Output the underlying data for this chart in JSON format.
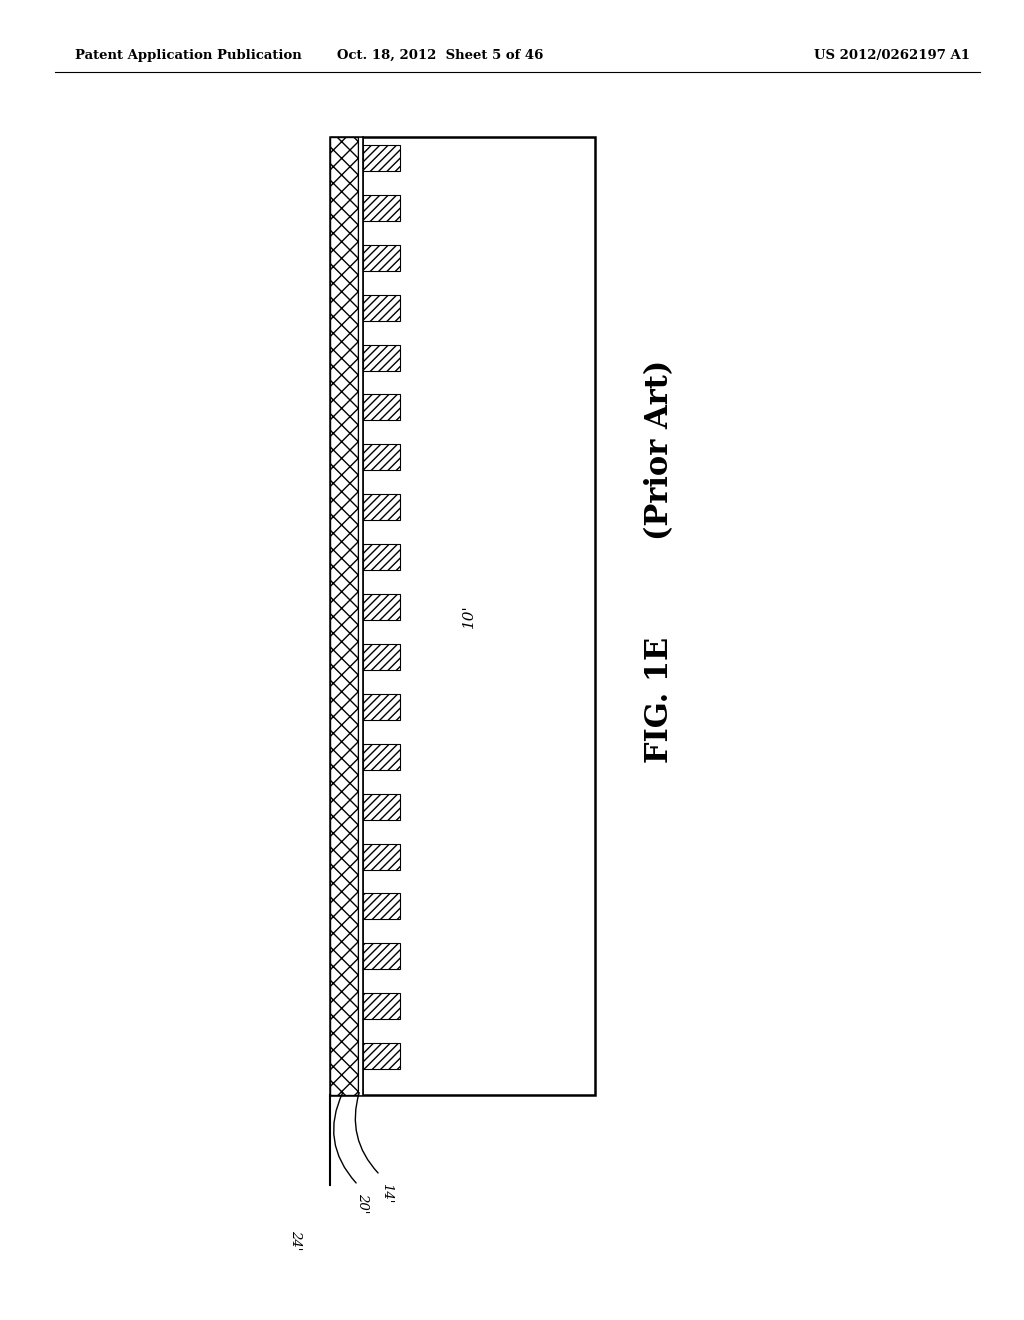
{
  "header_left": "Patent Application Publication",
  "header_mid": "Oct. 18, 2012  Sheet 5 of 46",
  "header_right": "US 2012/0262197 A1",
  "fig_label": "FIG. 1E",
  "fig_sublabel": "(Prior Art)",
  "label_10": "10'",
  "label_14": "14'",
  "label_20": "20'",
  "label_24": "24'",
  "bg_color": "#ffffff",
  "num_fins": 19,
  "fin_hatch": "////",
  "substrate_hatch": "xx"
}
